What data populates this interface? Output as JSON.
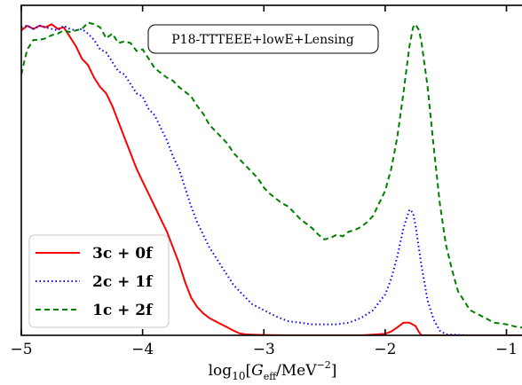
{
  "chart_data": {
    "type": "line",
    "title": "",
    "annotation": "P18-TTTEEE+lowE+Lensing",
    "xlabel": "log10[G_eff/MeV^-2]",
    "xlabel_parts": {
      "log": "log",
      "sub": "10",
      "open": "[",
      "G": "G",
      "eff": "eff",
      "unit": "/MeV",
      "exp": "−2",
      "close": "]"
    },
    "ylabel": "",
    "xlim": [
      -5.0,
      -0.85
    ],
    "ylim": [
      0,
      1.05
    ],
    "xticks": [
      -5,
      -4,
      -3,
      -2,
      -1
    ],
    "xtick_labels": [
      "−5",
      "−4",
      "−3",
      "−2",
      "−1"
    ],
    "legend_position": "lower-left",
    "series": [
      {
        "name": "3c + 0f",
        "color": "#ff0000",
        "style": "solid",
        "x": [
          -5.0,
          -4.95,
          -4.9,
          -4.85,
          -4.8,
          -4.75,
          -4.7,
          -4.65,
          -4.6,
          -4.55,
          -4.5,
          -4.45,
          -4.4,
          -4.35,
          -4.3,
          -4.25,
          -4.2,
          -4.15,
          -4.1,
          -4.05,
          -4.0,
          -3.95,
          -3.9,
          -3.85,
          -3.8,
          -3.75,
          -3.7,
          -3.65,
          -3.6,
          -3.55,
          -3.5,
          -3.45,
          -3.4,
          -3.35,
          -3.3,
          -3.25,
          -3.2,
          -3.15,
          -3.1,
          -3.0,
          -2.8,
          -2.6,
          -2.4,
          -2.2,
          -2.1,
          -2.0,
          -1.95,
          -1.9,
          -1.85,
          -1.8,
          -1.75,
          -1.72,
          -1.7,
          -1.6,
          -1.5,
          -1.3,
          -1.1,
          -0.85
        ],
        "y": [
          0.97,
          0.985,
          0.975,
          0.985,
          0.98,
          0.99,
          0.975,
          0.98,
          0.95,
          0.92,
          0.88,
          0.86,
          0.82,
          0.79,
          0.77,
          0.73,
          0.68,
          0.63,
          0.58,
          0.53,
          0.49,
          0.45,
          0.41,
          0.37,
          0.33,
          0.28,
          0.23,
          0.17,
          0.12,
          0.09,
          0.07,
          0.055,
          0.045,
          0.035,
          0.025,
          0.015,
          0.006,
          0.003,
          0.002,
          0.001,
          0.0,
          0.0,
          0.0,
          0.0,
          0.002,
          0.005,
          0.012,
          0.025,
          0.04,
          0.04,
          0.03,
          0.01,
          0.0,
          0.0,
          0.0,
          0.0,
          0.0,
          0.0
        ]
      },
      {
        "name": "2c + 1f",
        "color": "#0000ff",
        "style": "dotted",
        "x": [
          -5.0,
          -4.95,
          -4.9,
          -4.85,
          -4.8,
          -4.75,
          -4.7,
          -4.65,
          -4.6,
          -4.55,
          -4.5,
          -4.45,
          -4.4,
          -4.35,
          -4.3,
          -4.25,
          -4.2,
          -4.15,
          -4.1,
          -4.05,
          -4.0,
          -3.95,
          -3.9,
          -3.85,
          -3.8,
          -3.75,
          -3.7,
          -3.65,
          -3.6,
          -3.55,
          -3.5,
          -3.45,
          -3.4,
          -3.35,
          -3.3,
          -3.25,
          -3.2,
          -3.15,
          -3.1,
          -3.05,
          -3.0,
          -2.9,
          -2.8,
          -2.7,
          -2.6,
          -2.5,
          -2.4,
          -2.3,
          -2.2,
          -2.1,
          -2.0,
          -1.95,
          -1.9,
          -1.85,
          -1.8,
          -1.77,
          -1.75,
          -1.7,
          -1.65,
          -1.6,
          -1.55,
          -1.5,
          -1.3,
          -1.1,
          -0.85
        ],
        "y": [
          0.98,
          0.985,
          0.975,
          0.985,
          0.98,
          0.975,
          0.97,
          0.985,
          0.975,
          0.97,
          0.975,
          0.96,
          0.94,
          0.91,
          0.9,
          0.87,
          0.84,
          0.83,
          0.8,
          0.77,
          0.76,
          0.72,
          0.7,
          0.66,
          0.62,
          0.57,
          0.53,
          0.47,
          0.41,
          0.36,
          0.32,
          0.28,
          0.25,
          0.22,
          0.19,
          0.16,
          0.14,
          0.12,
          0.1,
          0.09,
          0.08,
          0.06,
          0.045,
          0.04,
          0.035,
          0.035,
          0.035,
          0.04,
          0.055,
          0.08,
          0.13,
          0.18,
          0.25,
          0.34,
          0.4,
          0.39,
          0.35,
          0.22,
          0.11,
          0.05,
          0.015,
          0.003,
          0.0,
          0.0,
          0.0
        ]
      },
      {
        "name": "1c + 2f",
        "color": "#008000",
        "style": "dashed",
        "x": [
          -5.0,
          -4.97,
          -4.95,
          -4.9,
          -4.85,
          -4.8,
          -4.75,
          -4.7,
          -4.65,
          -4.6,
          -4.55,
          -4.5,
          -4.45,
          -4.4,
          -4.35,
          -4.3,
          -4.25,
          -4.2,
          -4.15,
          -4.1,
          -4.05,
          -4.0,
          -3.95,
          -3.9,
          -3.85,
          -3.8,
          -3.75,
          -3.7,
          -3.65,
          -3.6,
          -3.55,
          -3.5,
          -3.45,
          -3.4,
          -3.35,
          -3.3,
          -3.25,
          -3.2,
          -3.15,
          -3.1,
          -3.05,
          -3.0,
          -2.95,
          -2.9,
          -2.85,
          -2.8,
          -2.75,
          -2.7,
          -2.65,
          -2.6,
          -2.55,
          -2.5,
          -2.45,
          -2.4,
          -2.35,
          -2.3,
          -2.25,
          -2.2,
          -2.15,
          -2.1,
          -2.05,
          -2.0,
          -1.95,
          -1.9,
          -1.85,
          -1.8,
          -1.77,
          -1.75,
          -1.72,
          -1.7,
          -1.65,
          -1.6,
          -1.55,
          -1.5,
          -1.45,
          -1.4,
          -1.35,
          -1.3,
          -1.2,
          -1.1,
          -1.0,
          -0.9,
          -0.85
        ],
        "y": [
          0.83,
          0.88,
          0.91,
          0.94,
          0.94,
          0.945,
          0.955,
          0.96,
          0.97,
          0.965,
          0.97,
          0.975,
          0.995,
          0.99,
          0.98,
          0.945,
          0.96,
          0.93,
          0.935,
          0.93,
          0.905,
          0.91,
          0.88,
          0.85,
          0.835,
          0.82,
          0.81,
          0.79,
          0.775,
          0.76,
          0.73,
          0.705,
          0.67,
          0.65,
          0.63,
          0.61,
          0.58,
          0.56,
          0.54,
          0.52,
          0.5,
          0.47,
          0.45,
          0.435,
          0.42,
          0.41,
          0.39,
          0.37,
          0.355,
          0.34,
          0.32,
          0.305,
          0.31,
          0.32,
          0.315,
          0.33,
          0.335,
          0.345,
          0.36,
          0.38,
          0.42,
          0.46,
          0.53,
          0.63,
          0.77,
          0.92,
          0.98,
          0.99,
          0.97,
          0.93,
          0.79,
          0.6,
          0.42,
          0.29,
          0.21,
          0.14,
          0.11,
          0.08,
          0.06,
          0.04,
          0.035,
          0.025,
          0.025
        ]
      }
    ]
  }
}
